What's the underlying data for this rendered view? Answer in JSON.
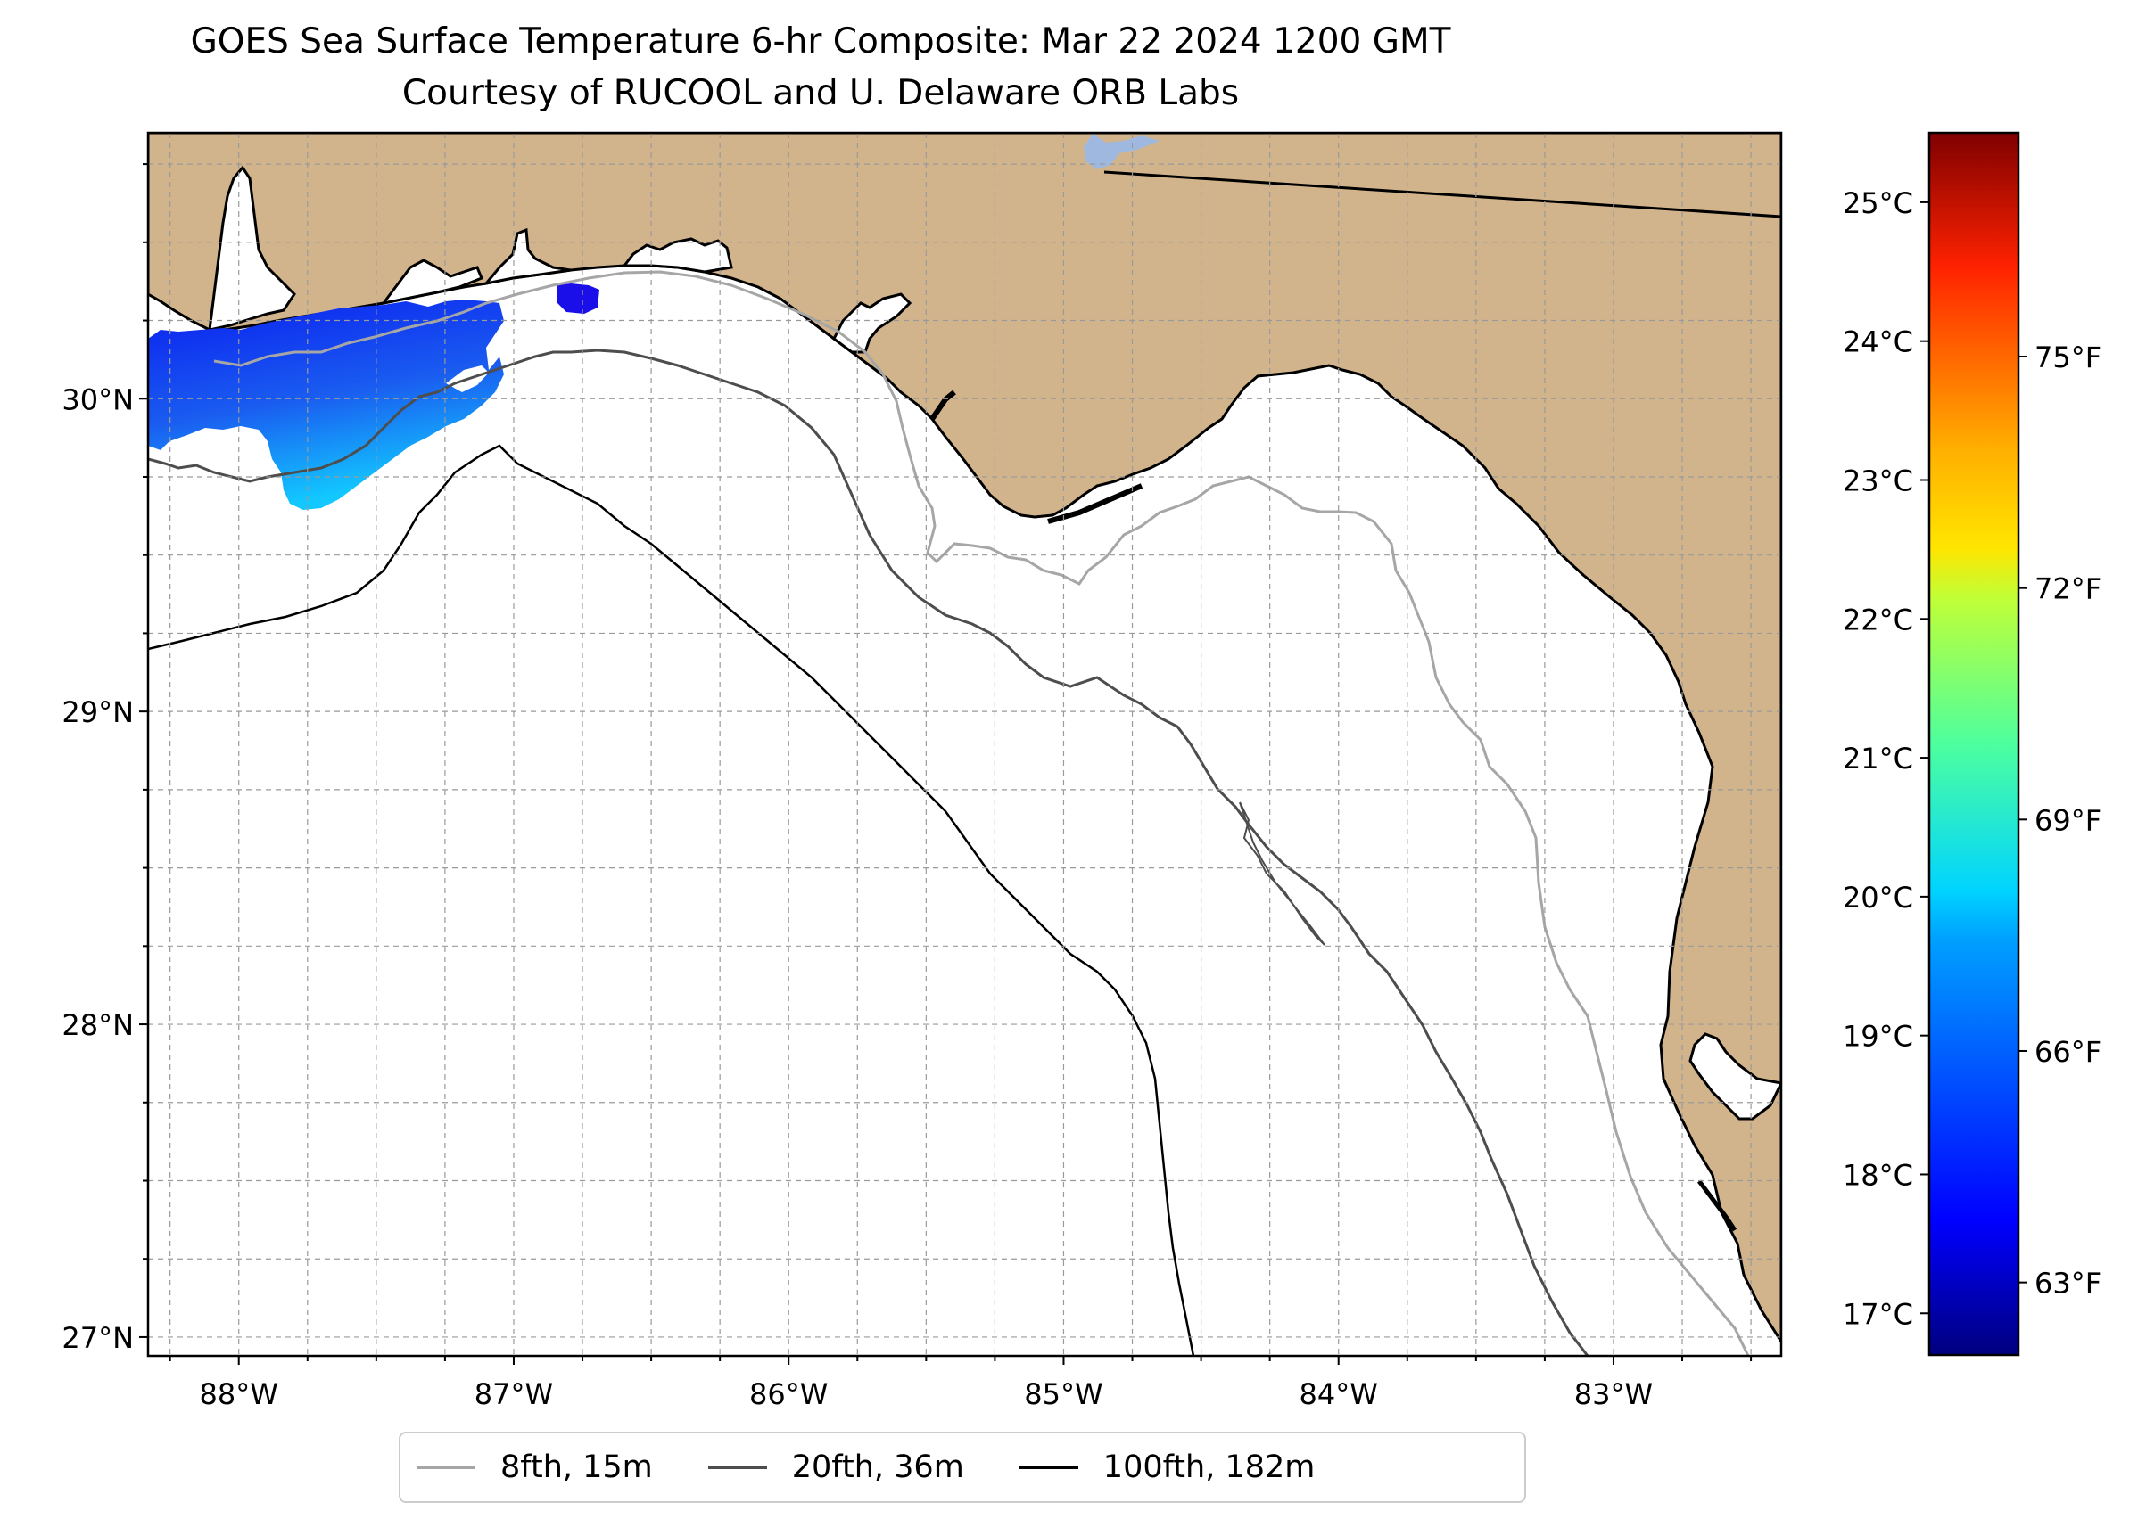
{
  "title": {
    "line1": "GOES Sea Surface Temperature 6-hr Composite: Mar 22 2024 1200 GMT",
    "line2": "Courtesy of RUCOOL and U. Delaware ORB Labs"
  },
  "map": {
    "extent": {
      "lon_min": -88.33,
      "lon_max": -82.39,
      "lat_min": 26.94,
      "lat_max": 30.85
    },
    "lon_ticks": [
      {
        "value": -88,
        "label": "88°W"
      },
      {
        "value": -87,
        "label": "87°W"
      },
      {
        "value": -86,
        "label": "86°W"
      },
      {
        "value": -85,
        "label": "85°W"
      },
      {
        "value": -84,
        "label": "84°W"
      },
      {
        "value": -83,
        "label": "83°W"
      }
    ],
    "lat_ticks": [
      {
        "value": 30,
        "label": "30°N"
      },
      {
        "value": 29,
        "label": "29°N"
      },
      {
        "value": 28,
        "label": "28°N"
      },
      {
        "value": 27,
        "label": "27°N"
      }
    ],
    "gridlines": "dashed, every 0.25°",
    "colors": {
      "land": "#d2b48c",
      "ocean": "#ffffff",
      "lake": "#9fb8e0",
      "coastline": "#000000"
    }
  },
  "colorbar": {
    "colormap": "jet",
    "celsius_ticks": [
      {
        "value": 17,
        "label": "17°C"
      },
      {
        "value": 18,
        "label": "18°C"
      },
      {
        "value": 19,
        "label": "19°C"
      },
      {
        "value": 20,
        "label": "20°C"
      },
      {
        "value": 21,
        "label": "21°C"
      },
      {
        "value": 22,
        "label": "22°C"
      },
      {
        "value": 23,
        "label": "23°C"
      },
      {
        "value": 24,
        "label": "24°C"
      },
      {
        "value": 25,
        "label": "25°C"
      }
    ],
    "fahrenheit_ticks": [
      {
        "value": 63,
        "label": "63°F"
      },
      {
        "value": 66,
        "label": "66°F"
      },
      {
        "value": 69,
        "label": "69°F"
      },
      {
        "value": 72,
        "label": "72°F"
      },
      {
        "value": 75,
        "label": "75°F"
      }
    ],
    "range_c": [
      16.7,
      25.5
    ]
  },
  "legend": {
    "entries": [
      {
        "label": "8fth, 15m",
        "color": "#a6a6a6"
      },
      {
        "label": "20fth, 36m",
        "color": "#4d4d4d"
      },
      {
        "label": "100fth, 182m",
        "color": "#000000"
      }
    ]
  }
}
